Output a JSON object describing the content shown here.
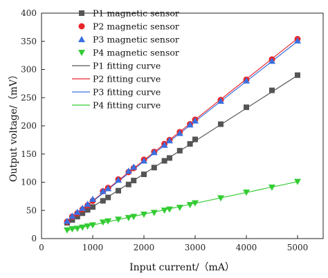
{
  "chart_data": {
    "type": "scatter",
    "xlabel": "Input current/（mA）",
    "ylabel": "Output voltage/（mV）",
    "xlim": [
      0,
      5500
    ],
    "ylim": [
      0,
      400
    ],
    "x_ticks": [
      "0",
      "1000",
      "2000",
      "3000",
      "4000",
      "5000"
    ],
    "y_ticks": [
      "0",
      "50",
      "100",
      "150",
      "200",
      "250",
      "300",
      "350",
      "400"
    ],
    "grid": false,
    "legend_position": "top-left",
    "x": [
      500,
      600,
      700,
      800,
      900,
      1000,
      1200,
      1300,
      1500,
      1700,
      1800,
      2000,
      2200,
      2400,
      2500,
      2700,
      2900,
      3000,
      3500,
      4000,
      4500,
      5000
    ],
    "series": [
      {
        "name": "P1 magnetic sensor",
        "marker": "square",
        "color": "#555555",
        "values": [
          28,
          33,
          39,
          45,
          51,
          56,
          67,
          73,
          85,
          96,
          103,
          114,
          126,
          138,
          143,
          156,
          168,
          176,
          203,
          233,
          263,
          290
        ]
      },
      {
        "name": "P2 magnetic sensor",
        "marker": "circle",
        "color": "#e8262a",
        "values": [
          30,
          39,
          45,
          52,
          59,
          67,
          84,
          90,
          105,
          118,
          125,
          140,
          154,
          168,
          175,
          189,
          203,
          211,
          246,
          282,
          318,
          354
        ]
      },
      {
        "name": "P3 magnetic sensor",
        "marker": "triangle-up",
        "color": "#3a6fe0",
        "values": [
          31,
          40,
          47,
          54,
          61,
          70,
          84,
          89,
          104,
          120,
          127,
          138,
          153,
          166,
          174,
          187,
          202,
          209,
          244,
          280,
          315,
          351
        ]
      },
      {
        "name": "P4 magnetic sensor",
        "marker": "triangle-down",
        "color": "#33cc33",
        "values": [
          15,
          17,
          18,
          20,
          22,
          24,
          29,
          31,
          34,
          37,
          39,
          43,
          46,
          50,
          52,
          55,
          60,
          63,
          72,
          82,
          91,
          101
        ]
      }
    ],
    "fitting_curves": [
      {
        "name": "P1 fitting curve",
        "color": "#555555",
        "x": [
          500,
          5000
        ],
        "y": [
          27.5,
          289.5
        ]
      },
      {
        "name": "P2 fitting curve",
        "color": "#e8262a",
        "x": [
          500,
          5000
        ],
        "y": [
          31,
          355
        ]
      },
      {
        "name": "P3 fitting curve",
        "color": "#3a6fe0",
        "x": [
          500,
          5000
        ],
        "y": [
          30.5,
          350
        ]
      },
      {
        "name": "P4 fitting curve",
        "color": "#33cc33",
        "x": [
          500,
          5000
        ],
        "y": [
          14.5,
          101
        ]
      }
    ]
  }
}
